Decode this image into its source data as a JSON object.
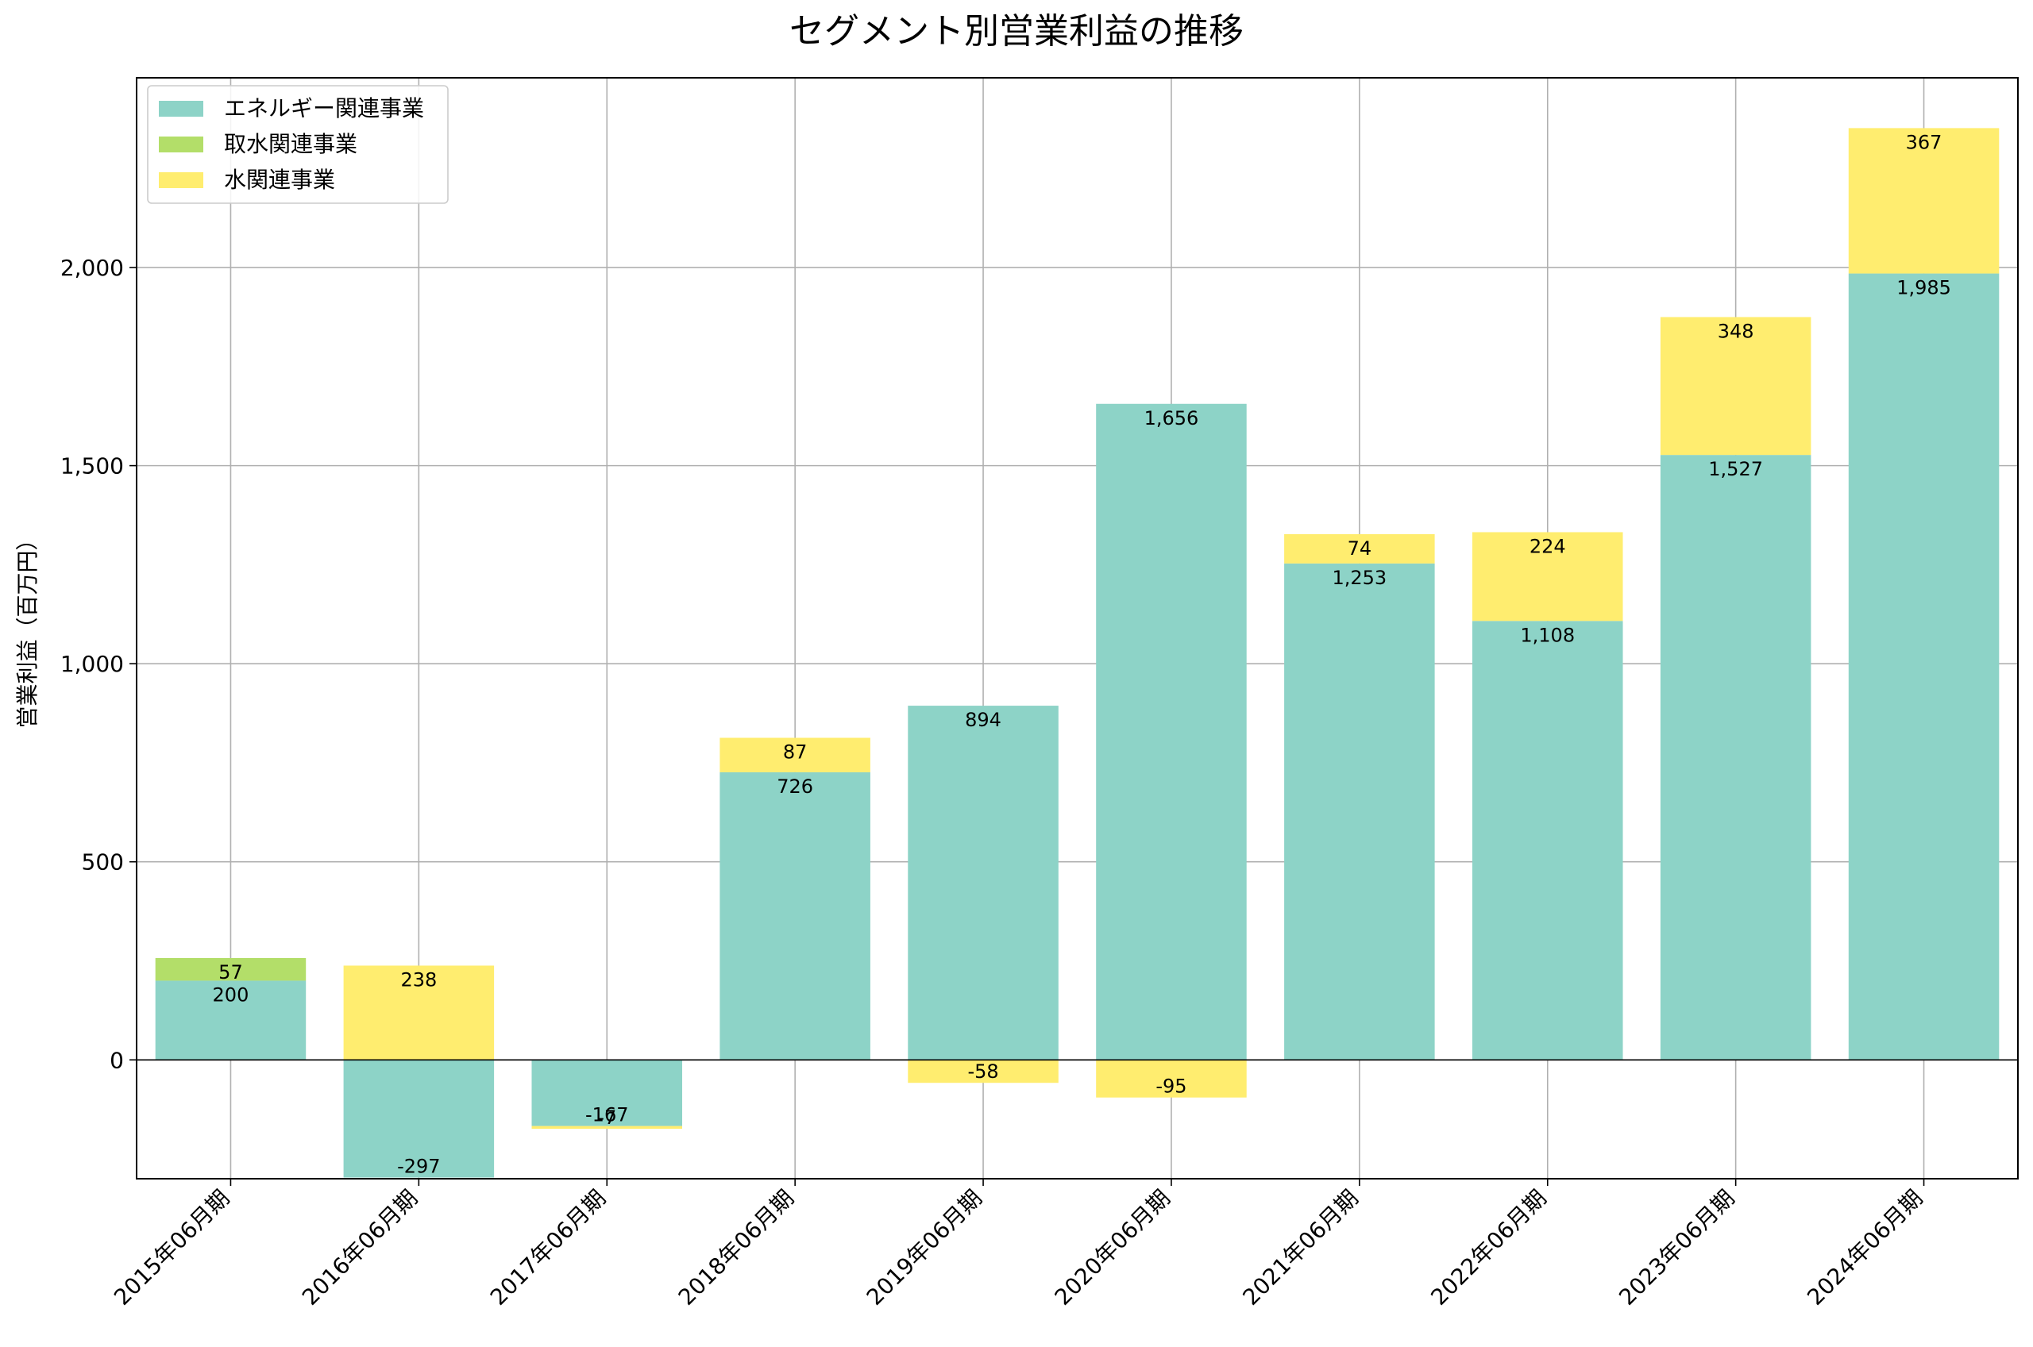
{
  "chart_data": {
    "type": "bar",
    "stacked": true,
    "title": "セグメント別営業利益の推移",
    "xlabel": "",
    "ylabel": "営業利益（百万円）",
    "ylim": [
      -300,
      2500
    ],
    "yticks": [
      0,
      500,
      1000,
      1500,
      2000
    ],
    "ytick_labels": [
      "0",
      "500",
      "1,000",
      "1,500",
      "2,000"
    ],
    "grid": true,
    "legend_position": "top-left",
    "categories": [
      "2015年06月期",
      "2016年06月期",
      "2017年06月期",
      "2018年06月期",
      "2019年06月期",
      "2020年06月期",
      "2021年06月期",
      "2022年06月期",
      "2023年06月期",
      "2024年06月期"
    ],
    "series": [
      {
        "name": "エネルギー関連事業",
        "color": "#8dd3c7",
        "values": [
          200,
          -297,
          -167,
          726,
          894,
          1656,
          1253,
          1108,
          1527,
          1985
        ],
        "labels": [
          "200",
          "-297",
          "-167",
          "726",
          "894",
          "1,656",
          "1,253",
          "1,108",
          "1,527",
          "1,985"
        ]
      },
      {
        "name": "取水関連事業",
        "color": "#b3de69",
        "values": [
          57,
          0,
          0,
          0,
          0,
          0,
          0,
          0,
          0,
          0
        ],
        "labels": [
          "57",
          "",
          "",
          "",
          "",
          "",
          "",
          "",
          "",
          ""
        ]
      },
      {
        "name": "水関連事業",
        "color": "#ffed6f",
        "values": [
          0,
          238,
          -7,
          87,
          -58,
          -95,
          74,
          224,
          348,
          367
        ],
        "labels": [
          "",
          "238",
          "-7",
          "87",
          "-58",
          "-95",
          "74",
          "224",
          "348",
          "367"
        ]
      }
    ]
  }
}
